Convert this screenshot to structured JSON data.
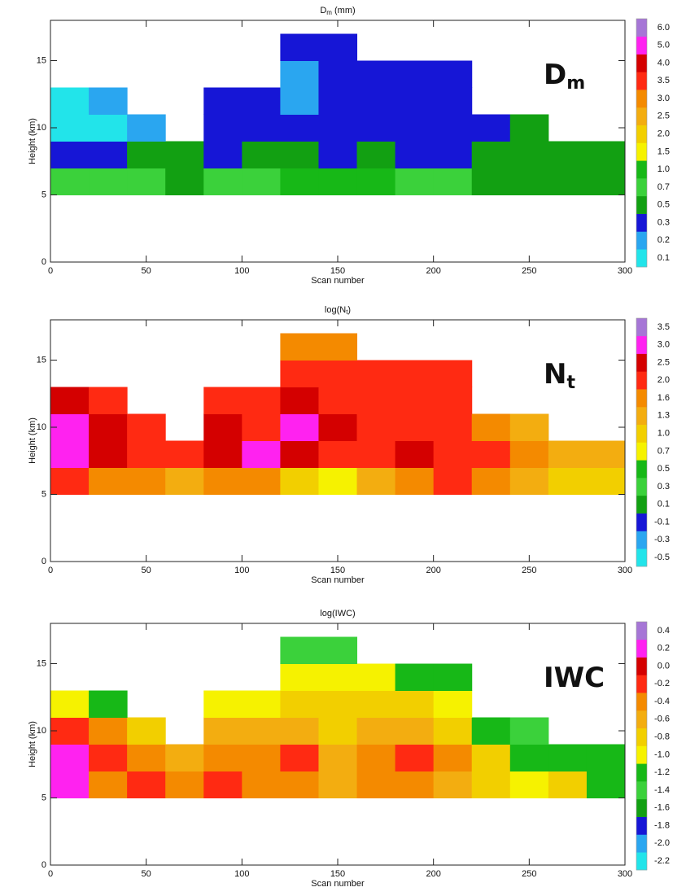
{
  "chart_data": [
    {
      "type": "heatmap",
      "title": "D",
      "title_sub": "m",
      "title_end": " (mm)",
      "label": "D",
      "label_sub": "m",
      "xlabel": "Scan number",
      "ylabel": "Height (km)",
      "xlim": [
        0,
        300
      ],
      "ylim": [
        0,
        18
      ],
      "xticks": [
        0,
        50,
        100,
        150,
        200,
        250,
        300
      ],
      "yticks": [
        0,
        5,
        10,
        15
      ],
      "x": [
        10,
        30,
        50,
        70,
        90,
        110,
        130,
        150,
        170,
        190,
        210,
        230,
        250,
        270,
        290
      ],
      "y": [
        6,
        8,
        10,
        12,
        14,
        16
      ],
      "z": [
        [
          0.7,
          0.7,
          0.7,
          0.5,
          0.7,
          0.7,
          1.0,
          1.0,
          1.0,
          0.7,
          0.7,
          0.5,
          0.5,
          0.5,
          0.5
        ],
        [
          0.3,
          0.3,
          0.5,
          0.5,
          0.3,
          0.5,
          0.5,
          0.3,
          0.5,
          0.3,
          0.3,
          0.5,
          0.5,
          0.5,
          0.5
        ],
        [
          0.1,
          0.1,
          0.2,
          null,
          0.3,
          0.3,
          0.3,
          0.3,
          0.3,
          0.3,
          0.3,
          0.3,
          0.5,
          null,
          null
        ],
        [
          0.1,
          0.2,
          null,
          null,
          0.3,
          0.3,
          0.2,
          0.3,
          0.3,
          0.3,
          0.3,
          null,
          null,
          null,
          null
        ],
        [
          null,
          null,
          null,
          null,
          null,
          null,
          0.2,
          0.3,
          0.3,
          0.3,
          0.3,
          null,
          null,
          null,
          null
        ],
        [
          null,
          null,
          null,
          null,
          null,
          null,
          0.3,
          0.3,
          null,
          null,
          null,
          null,
          null,
          null,
          null
        ]
      ],
      "levels": [
        0.1,
        0.2,
        0.3,
        0.5,
        0.7,
        {
          "value": 1,
          "label": "1.0"
        },
        1.5,
        {
          "value": 2,
          "label": "2.0"
        },
        2.5,
        {
          "value": 3,
          "label": "3.0"
        },
        3.5,
        {
          "value": 4,
          "label": "4.0"
        },
        {
          "value": 5,
          "label": "5.0"
        },
        {
          "value": 6,
          "label": "6.0"
        }
      ],
      "colors": [
        "#22e4ea",
        "#2aa6f0",
        "#1616d6",
        "#12a012",
        "#3bd13b",
        "#17b817",
        "#f6f200",
        "#f2cf00",
        "#f3ad10",
        "#f48a00",
        "#ff2a12",
        "#d40000",
        "#ff22f0",
        "#a676d6"
      ]
    },
    {
      "type": "heatmap",
      "title": "log(N",
      "title_sub": "t",
      "title_end": ")",
      "label": "N",
      "label_sub": "t",
      "xlabel": "Scan number",
      "ylabel": "Height (km)",
      "xlim": [
        0,
        300
      ],
      "ylim": [
        0,
        18
      ],
      "xticks": [
        0,
        50,
        100,
        150,
        200,
        250,
        300
      ],
      "yticks": [
        0,
        5,
        10,
        15
      ],
      "x": [
        10,
        30,
        50,
        70,
        90,
        110,
        130,
        150,
        170,
        190,
        210,
        230,
        250,
        270,
        290
      ],
      "y": [
        6,
        8,
        10,
        12,
        14,
        16
      ],
      "z": [
        [
          2.0,
          1.6,
          1.6,
          1.3,
          1.6,
          1.6,
          1.0,
          0.7,
          1.3,
          1.6,
          2.0,
          1.6,
          1.3,
          1.0,
          1.0
        ],
        [
          3.0,
          2.5,
          2.0,
          2.0,
          2.5,
          3.0,
          2.5,
          2.0,
          2.0,
          2.5,
          2.0,
          2.0,
          1.6,
          1.3,
          1.3
        ],
        [
          3.0,
          2.5,
          2.0,
          null,
          2.5,
          2.0,
          3.0,
          2.5,
          2.0,
          2.0,
          2.0,
          1.6,
          1.3,
          null,
          null
        ],
        [
          2.5,
          2.0,
          null,
          null,
          2.0,
          2.0,
          2.5,
          2.0,
          2.0,
          2.0,
          2.0,
          null,
          null,
          null,
          null
        ],
        [
          null,
          null,
          null,
          null,
          null,
          null,
          2.0,
          2.0,
          2.0,
          2.0,
          2.0,
          null,
          null,
          null,
          null
        ],
        [
          null,
          null,
          null,
          null,
          null,
          null,
          1.6,
          1.6,
          null,
          null,
          null,
          null,
          null,
          null,
          null
        ]
      ],
      "levels": [
        -0.5,
        -0.3,
        -0.1,
        0.1,
        0.3,
        0.5,
        0.7,
        {
          "value": 1,
          "label": "1.0"
        },
        1.3,
        1.6,
        {
          "value": 2,
          "label": "2.0"
        },
        2.5,
        {
          "value": 3,
          "label": "3.0"
        },
        3.5
      ],
      "colors": [
        "#22e4ea",
        "#2aa6f0",
        "#1616d6",
        "#12a012",
        "#3bd13b",
        "#17b817",
        "#f6f200",
        "#f2cf00",
        "#f3ad10",
        "#f48a00",
        "#ff2a12",
        "#d40000",
        "#ff22f0",
        "#a676d6"
      ]
    },
    {
      "type": "heatmap",
      "title": "log(IWC)",
      "label": "IWC",
      "xlabel": "Scan number",
      "ylabel": "Height (km)",
      "xlim": [
        0,
        300
      ],
      "ylim": [
        0,
        18
      ],
      "xticks": [
        0,
        50,
        100,
        150,
        200,
        250,
        300
      ],
      "yticks": [
        0,
        5,
        10,
        15
      ],
      "x": [
        10,
        30,
        50,
        70,
        90,
        110,
        130,
        150,
        170,
        190,
        210,
        230,
        250,
        270,
        290
      ],
      "y": [
        6,
        8,
        10,
        12,
        14,
        16
      ],
      "z": [
        [
          0.2,
          -0.4,
          -0.2,
          -0.4,
          -0.2,
          -0.4,
          -0.4,
          -0.6,
          -0.4,
          -0.4,
          -0.6,
          -0.8,
          -1.0,
          -0.8,
          -1.2
        ],
        [
          0.2,
          -0.2,
          -0.4,
          -0.6,
          -0.4,
          -0.4,
          -0.2,
          -0.6,
          -0.4,
          -0.2,
          -0.4,
          -0.8,
          -1.2,
          -1.2,
          -1.2
        ],
        [
          -0.2,
          -0.4,
          -0.8,
          null,
          -0.6,
          -0.6,
          -0.6,
          -0.8,
          -0.6,
          -0.6,
          -0.8,
          -1.2,
          -1.4,
          null,
          null
        ],
        [
          -1.0,
          -1.2,
          null,
          null,
          -1.0,
          -1.0,
          -0.8,
          -0.8,
          -0.8,
          -0.8,
          -1.0,
          null,
          null,
          null,
          null
        ],
        [
          null,
          null,
          null,
          null,
          null,
          null,
          -1.0,
          -1.0,
          -1.0,
          -1.2,
          -1.2,
          null,
          null,
          null,
          null
        ],
        [
          null,
          null,
          null,
          null,
          null,
          null,
          -1.4,
          -1.4,
          null,
          null,
          null,
          null,
          null,
          null,
          null
        ]
      ],
      "levels": [
        -2.2,
        {
          "value": -2,
          "label": "-2.0"
        },
        -1.8,
        -1.6,
        -1.4,
        -1.2,
        {
          "value": -1,
          "label": "-1.0"
        },
        -0.8,
        -0.6,
        -0.4,
        -0.2,
        {
          "value": 0,
          "label": "0.0"
        },
        0.2,
        0.4
      ],
      "colors": [
        "#22e4ea",
        "#2aa6f0",
        "#1616d6",
        "#12a012",
        "#3bd13b",
        "#17b817",
        "#f6f200",
        "#f2cf00",
        "#f3ad10",
        "#f48a00",
        "#ff2a12",
        "#d40000",
        "#ff22f0",
        "#a676d6"
      ]
    }
  ]
}
